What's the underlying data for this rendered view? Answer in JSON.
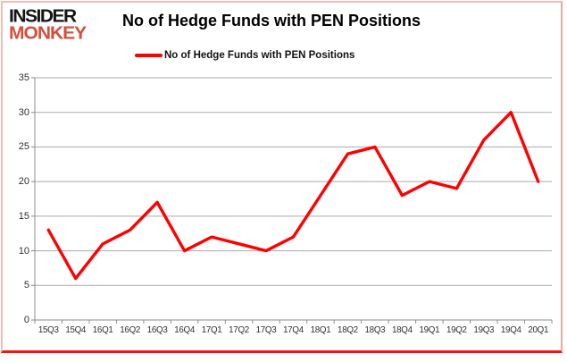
{
  "brand": {
    "line1": "INSIDER",
    "line2": "MONKEY"
  },
  "header": {
    "title": "No of Hedge Funds with PEN Positions"
  },
  "legend": {
    "label": "No of Hedge Funds with PEN Positions",
    "swatch_color": "#ff0000"
  },
  "colors": {
    "series": "#ff0000",
    "grid_line": "#aaaaaa",
    "axis_line": "#8c8c8c",
    "tick_label": "#303030",
    "border_side": "#f3bcb4",
    "border_bottom": "#fb0f0f",
    "logo_black": "#151515",
    "logo_red": "#d34f3b",
    "background": "#ffffff"
  },
  "chart_data": {
    "type": "line",
    "title": "No of Hedge Funds with PEN Positions",
    "categories": [
      "15Q3",
      "15Q4",
      "16Q1",
      "16Q2",
      "16Q3",
      "16Q4",
      "17Q1",
      "17Q2",
      "17Q3",
      "17Q4",
      "18Q1",
      "18Q2",
      "18Q3",
      "18Q4",
      "19Q1",
      "19Q2",
      "19Q3",
      "19Q4",
      "20Q1"
    ],
    "series": [
      {
        "name": "No of Hedge Funds with PEN Positions",
        "color": "#ff0000",
        "values": [
          13,
          6,
          11,
          13,
          17,
          10,
          12,
          11,
          10,
          12,
          18,
          24,
          25,
          18,
          20,
          19,
          26,
          30,
          20
        ]
      }
    ],
    "xlabel": "",
    "ylabel": "",
    "ylim": [
      0,
      35
    ],
    "yticks": [
      0,
      5,
      10,
      15,
      20,
      25,
      30,
      35
    ],
    "grid": true,
    "legend_position": "top-center"
  }
}
